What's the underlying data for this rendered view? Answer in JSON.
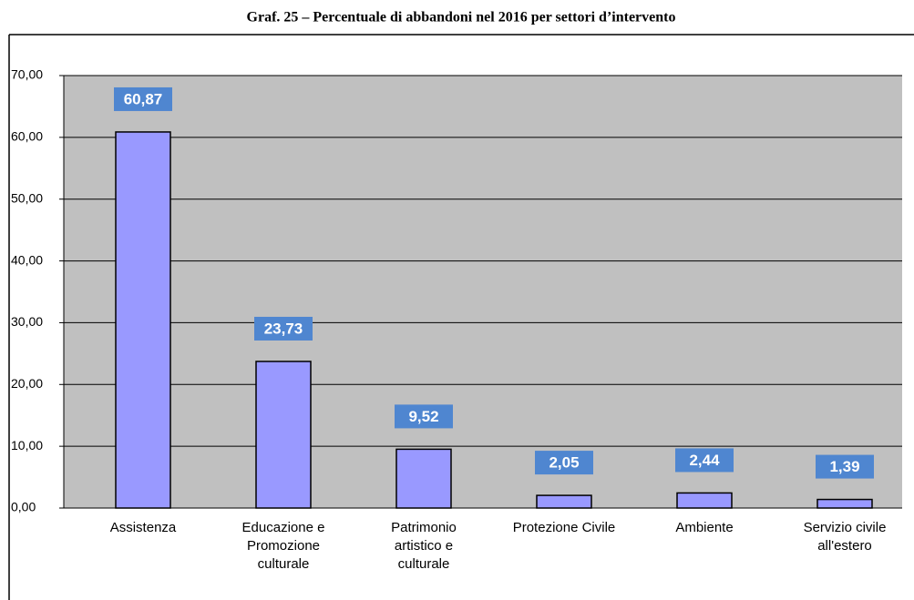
{
  "chart_data": {
    "type": "bar",
    "title": "Graf. 25 – Percentuale di abbandoni nel 2016 per settori d’intervento",
    "categories": [
      "Assistenza",
      "Educazione e Promozione culturale",
      "Patrimonio artistico e culturale",
      "Protezione Civile",
      "Ambiente",
      "Servizio civile all'estero"
    ],
    "values": [
      60.87,
      23.73,
      9.52,
      2.05,
      2.44,
      1.39
    ],
    "value_labels": [
      "60,87",
      "23,73",
      "9,52",
      "2,05",
      "2,44",
      "1,39"
    ],
    "color": "#9999ff",
    "ylim": [
      0,
      70
    ],
    "yticks": [
      {
        "value": 0,
        "label": "0,00"
      },
      {
        "value": 10,
        "label": "10,00"
      },
      {
        "value": 20,
        "label": "20,00"
      },
      {
        "value": 30,
        "label": "30,00"
      },
      {
        "value": 40,
        "label": "40,00"
      },
      {
        "value": 50,
        "label": "50,00"
      },
      {
        "value": 60,
        "label": "60,00"
      },
      {
        "value": 70,
        "label": "70,00"
      }
    ],
    "grid": true
  }
}
